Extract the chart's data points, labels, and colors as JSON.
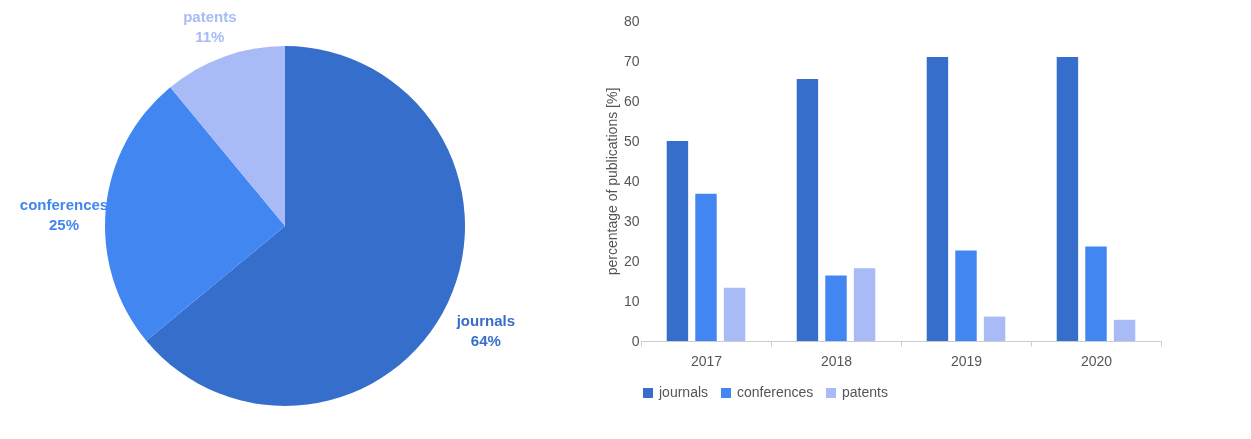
{
  "chart_data": [
    {
      "type": "pie",
      "categories": [
        "journals",
        "conferences",
        "patents"
      ],
      "values": [
        64,
        25,
        11
      ],
      "value_labels": [
        "64%",
        "25%",
        "11%"
      ],
      "colors": [
        "#366ecb",
        "#4286f2",
        "#a8bbf7"
      ],
      "legend": false
    },
    {
      "type": "bar",
      "ylabel": "percentage of publications [%]",
      "categories": [
        "2017",
        "2018",
        "2019",
        "2020"
      ],
      "ylim": [
        0,
        80
      ],
      "yticks": [
        0,
        10,
        20,
        30,
        40,
        50,
        60,
        70,
        80
      ],
      "grid": false,
      "legend": "bottom",
      "series": [
        {
          "name": "journals",
          "color": "#366ecb",
          "values": [
            50,
            65.5,
            71,
            71
          ]
        },
        {
          "name": "conferences",
          "color": "#4286f2",
          "values": [
            36.8,
            16.4,
            22.6,
            23.6
          ]
        },
        {
          "name": "patents",
          "color": "#a8bbf7",
          "values": [
            13.3,
            18.2,
            6.1,
            5.3
          ]
        }
      ]
    }
  ]
}
